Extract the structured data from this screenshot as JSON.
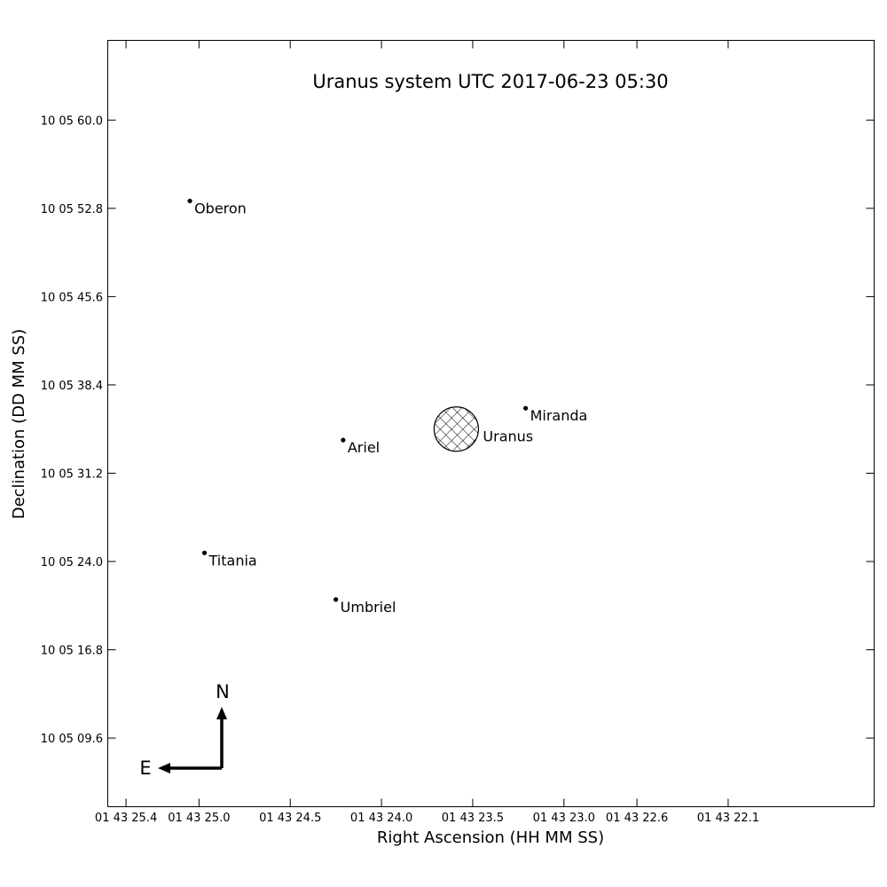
{
  "chart_data": {
    "type": "scatter",
    "title": "Uranus system UTC 2017-06-23 05:30",
    "xlabel": "Right Ascension (HH MM SS)",
    "ylabel": "Declination (DD MM SS)",
    "x_unit": "RA seconds past 01h43m",
    "y_unit": "Dec arcseconds past +10°05'",
    "x_reversed": true,
    "xlim": [
      25.5,
      21.3
    ],
    "ylim": [
      4.0,
      66.5
    ],
    "grid": false,
    "x_ticks": [
      {
        "value": 25.4,
        "label": "01 43 25.4"
      },
      {
        "value": 25.0,
        "label": "01 43 25.0"
      },
      {
        "value": 24.5,
        "label": "01 43 24.5"
      },
      {
        "value": 24.0,
        "label": "01 43 24.0"
      },
      {
        "value": 23.5,
        "label": "01 43 23.5"
      },
      {
        "value": 23.0,
        "label": "01 43 23.0"
      },
      {
        "value": 22.6,
        "label": "01 43 22.6"
      },
      {
        "value": 22.1,
        "label": "01 43 22.1"
      }
    ],
    "y_ticks": [
      {
        "value": 60.0,
        "label": "10 05 60.0"
      },
      {
        "value": 52.8,
        "label": "10 05 52.8"
      },
      {
        "value": 45.6,
        "label": "10 05 45.6"
      },
      {
        "value": 38.4,
        "label": "10 05 38.4"
      },
      {
        "value": 31.2,
        "label": "10 05 31.2"
      },
      {
        "value": 24.0,
        "label": "10 05 24.0"
      },
      {
        "value": 16.8,
        "label": "10 05 16.8"
      },
      {
        "value": 9.6,
        "label": "10 05 09.6"
      }
    ],
    "planet": {
      "name": "Uranus",
      "ra_sec": 23.59,
      "dec_sec": 34.8,
      "hatch": "crosshatch"
    },
    "moons": [
      {
        "name": "Oberon",
        "ra_sec": 25.05,
        "dec_sec": 53.4
      },
      {
        "name": "Miranda",
        "ra_sec": 23.21,
        "dec_sec": 36.5
      },
      {
        "name": "Ariel",
        "ra_sec": 24.21,
        "dec_sec": 33.9
      },
      {
        "name": "Titania",
        "ra_sec": 24.97,
        "dec_sec": 24.7
      },
      {
        "name": "Umbriel",
        "ra_sec": 24.25,
        "dec_sec": 20.9
      }
    ],
    "compass": {
      "north_label": "N",
      "east_label": "E"
    }
  }
}
